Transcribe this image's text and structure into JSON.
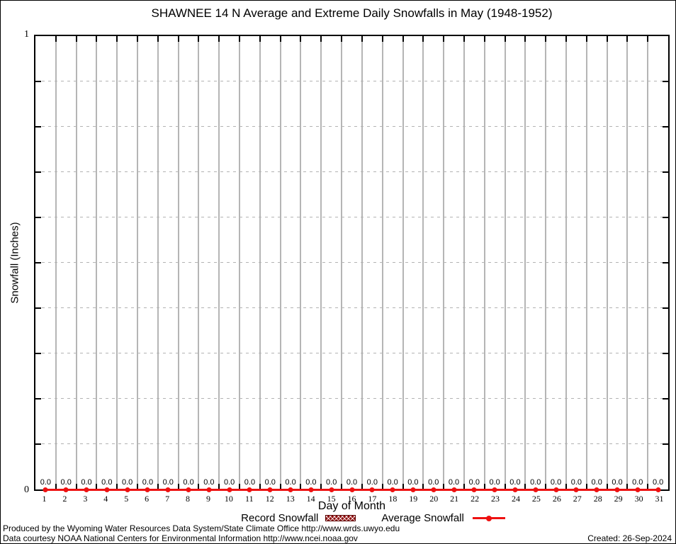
{
  "chart_data": {
    "type": "line",
    "title": "SHAWNEE 14 N Average and Extreme Daily Snowfalls in May (1948-1952)",
    "xlabel": "Day of Month",
    "ylabel": "Snowfall (Inches)",
    "ylim": [
      0,
      1
    ],
    "ytick_labels": [
      "0",
      "1"
    ],
    "y_gridline_step": 0.1,
    "grid": true,
    "legend_position": "bottom",
    "categories": [
      1,
      2,
      3,
      4,
      5,
      6,
      7,
      8,
      9,
      10,
      11,
      12,
      13,
      14,
      15,
      16,
      17,
      18,
      19,
      20,
      21,
      22,
      23,
      24,
      25,
      26,
      27,
      28,
      29,
      30,
      31
    ],
    "series": [
      {
        "name": "Record Snowfall",
        "values": [
          0,
          0,
          0,
          0,
          0,
          0,
          0,
          0,
          0,
          0,
          0,
          0,
          0,
          0,
          0,
          0,
          0,
          0,
          0,
          0,
          0,
          0,
          0,
          0,
          0,
          0,
          0,
          0,
          0,
          0,
          0
        ]
      },
      {
        "name": "Average Snowfall",
        "values": [
          0,
          0,
          0,
          0,
          0,
          0,
          0,
          0,
          0,
          0,
          0,
          0,
          0,
          0,
          0,
          0,
          0,
          0,
          0,
          0,
          0,
          0,
          0,
          0,
          0,
          0,
          0,
          0,
          0,
          0,
          0
        ]
      }
    ],
    "point_labels": [
      "0.0",
      "0.0",
      "0.0",
      "0.0",
      "0.0",
      "0.0",
      "0.0",
      "0.0",
      "0.0",
      "0.0",
      "0.0",
      "0.0",
      "0.0",
      "0.0",
      "0.0",
      "0.0",
      "0.0",
      "0.0",
      "0.0",
      "0.0",
      "0.0",
      "0.0",
      "0.0",
      "0.0",
      "0.0",
      "0.0",
      "0.0",
      "0.0",
      "0.0",
      "0.0",
      "0.0"
    ]
  },
  "colors": {
    "average_line_red": "#ee1111",
    "record_swatch_dark_red": "#8b0000",
    "vertical_grid_gray": "#b5b5b5",
    "horizontal_grid_dash_gray": "#b3b3b3"
  },
  "footer": {
    "line1": "Produced by the Wyoming Water Resources Data System/State Climate Office http://www.wrds.uwyo.edu",
    "line2": "Data courtesy NOAA National Centers for Environmental Information http://www.ncei.noaa.gov",
    "created": "Created: 26-Sep-2024"
  }
}
